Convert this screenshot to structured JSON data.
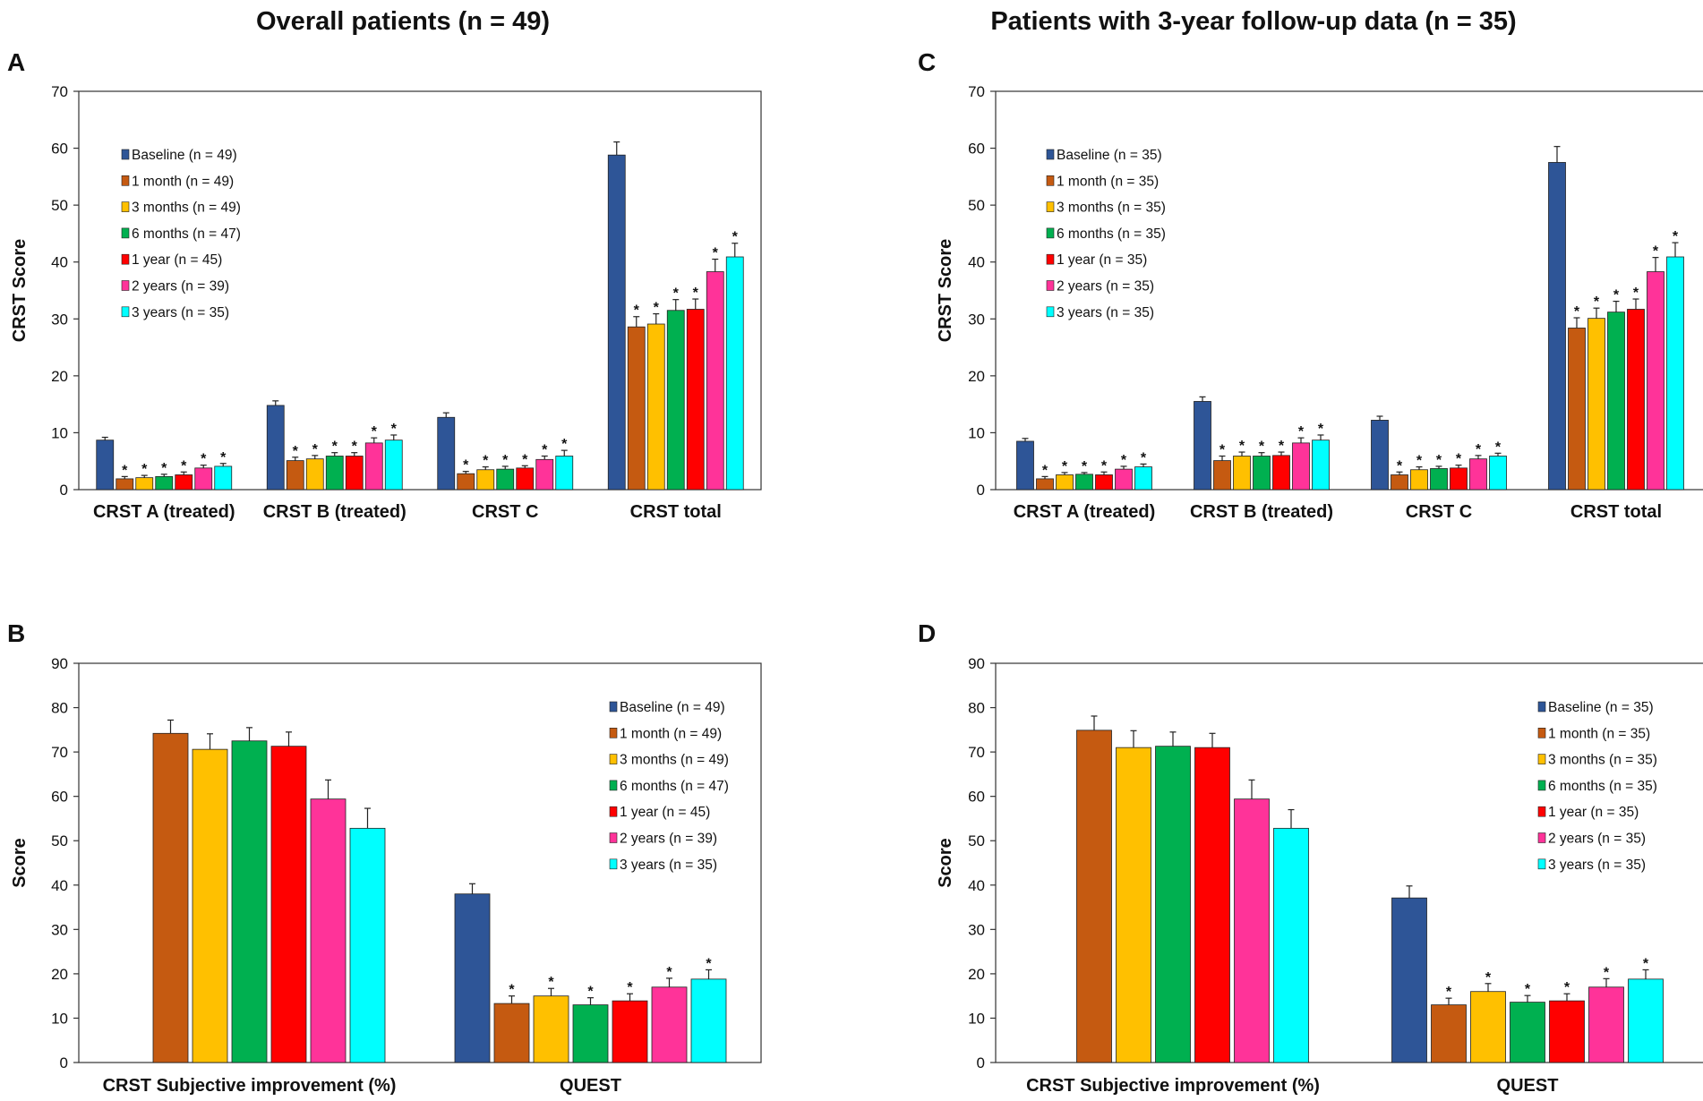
{
  "column_titles": {
    "left": "Overall patients (n = 49)",
    "right": "Patients with 3-year follow-up data (n = 35)"
  },
  "colors": {
    "Baseline": "#2e5597",
    "1 month": "#c55a11",
    "3 months": "#ffc000",
    "6 months": "#00b050",
    "1 year": "#ff0000",
    "2 years": "#ff3399",
    "3 years": "#00ffff"
  },
  "chart_data": [
    {
      "panel": "A",
      "type": "bar",
      "ylabel": "CRST Score",
      "ylim": [
        0,
        70
      ],
      "yticks": [
        0,
        10,
        20,
        30,
        40,
        50,
        60,
        70
      ],
      "legend_position": "top-left",
      "categories": [
        "CRST A (treated)",
        "CRST B (treated)",
        "CRST C",
        "CRST total"
      ],
      "series": [
        {
          "name": "Baseline",
          "legend": "Baseline (n = 49)",
          "values": [
            8.7,
            14.8,
            12.7,
            58.8
          ],
          "errors": [
            0.5,
            0.8,
            0.8,
            2.3
          ],
          "sig": [
            false,
            false,
            false,
            false
          ]
        },
        {
          "name": "1 month",
          "legend": "1 month (n = 49)",
          "values": [
            1.9,
            5.1,
            2.8,
            28.6
          ],
          "errors": [
            0.4,
            0.6,
            0.4,
            1.8
          ],
          "sig": [
            true,
            true,
            true,
            true
          ]
        },
        {
          "name": "3 months",
          "legend": "3 months (n = 49)",
          "values": [
            2.1,
            5.4,
            3.5,
            29.1
          ],
          "errors": [
            0.4,
            0.6,
            0.5,
            1.8
          ],
          "sig": [
            true,
            true,
            true,
            true
          ]
        },
        {
          "name": "6 months",
          "legend": "6 months (n = 47)",
          "values": [
            2.3,
            5.9,
            3.6,
            31.5
          ],
          "errors": [
            0.4,
            0.6,
            0.5,
            1.9
          ],
          "sig": [
            true,
            true,
            true,
            true
          ]
        },
        {
          "name": "1 year",
          "legend": "1 year (n = 45)",
          "values": [
            2.6,
            5.9,
            3.8,
            31.7
          ],
          "errors": [
            0.5,
            0.6,
            0.4,
            1.8
          ],
          "sig": [
            true,
            true,
            true,
            true
          ]
        },
        {
          "name": "2 years",
          "legend": "2 years (n = 39)",
          "values": [
            3.8,
            8.2,
            5.3,
            38.3
          ],
          "errors": [
            0.5,
            0.9,
            0.6,
            2.2
          ],
          "sig": [
            true,
            true,
            true,
            true
          ]
        },
        {
          "name": "3 years",
          "legend": "3 years (n = 35)",
          "values": [
            4.1,
            8.7,
            5.9,
            40.9
          ],
          "errors": [
            0.5,
            0.9,
            1.0,
            2.4
          ],
          "sig": [
            true,
            true,
            true,
            true
          ]
        }
      ]
    },
    {
      "panel": "B",
      "type": "bar",
      "ylabel": "Score",
      "ylim": [
        0,
        90
      ],
      "yticks": [
        0,
        10,
        20,
        30,
        40,
        50,
        60,
        70,
        80,
        90
      ],
      "legend_position": "right",
      "categories": [
        "CRST Subjective improvement (%)",
        "QUEST"
      ],
      "series": [
        {
          "name": "Baseline",
          "legend": "Baseline (n = 49)",
          "values": [
            null,
            38.0
          ],
          "errors": [
            0,
            2.3
          ],
          "sig": [
            false,
            false
          ]
        },
        {
          "name": "1 month",
          "legend": "1 month (n = 49)",
          "values": [
            74.2,
            13.3
          ],
          "errors": [
            3.0,
            1.7
          ],
          "sig": [
            false,
            true
          ]
        },
        {
          "name": "3 months",
          "legend": "3 months (n = 49)",
          "values": [
            70.6,
            15.0
          ],
          "errors": [
            3.5,
            1.7
          ],
          "sig": [
            false,
            true
          ]
        },
        {
          "name": "6 months",
          "legend": "6 months (n = 47)",
          "values": [
            72.5,
            13.0
          ],
          "errors": [
            3.0,
            1.6
          ],
          "sig": [
            false,
            true
          ]
        },
        {
          "name": "1 year",
          "legend": "1 year (n = 45)",
          "values": [
            71.3,
            13.9
          ],
          "errors": [
            3.2,
            1.6
          ],
          "sig": [
            false,
            true
          ]
        },
        {
          "name": "2 years",
          "legend": "2 years (n = 39)",
          "values": [
            59.4,
            17.0
          ],
          "errors": [
            4.3,
            2.0
          ],
          "sig": [
            false,
            true
          ]
        },
        {
          "name": "3 years",
          "legend": "3 years (n = 35)",
          "values": [
            52.8,
            18.8
          ],
          "errors": [
            4.5,
            2.1
          ],
          "sig": [
            false,
            true
          ]
        }
      ]
    },
    {
      "panel": "C",
      "type": "bar",
      "ylabel": "CRST Score",
      "ylim": [
        0,
        70
      ],
      "yticks": [
        0,
        10,
        20,
        30,
        40,
        50,
        60,
        70
      ],
      "legend_position": "top-left",
      "categories": [
        "CRST A (treated)",
        "CRST B (treated)",
        "CRST C",
        "CRST total"
      ],
      "series": [
        {
          "name": "Baseline",
          "legend": "Baseline (n = 35)",
          "values": [
            8.5,
            15.5,
            12.2,
            57.5
          ],
          "errors": [
            0.5,
            0.8,
            0.7,
            2.8
          ],
          "sig": [
            false,
            false,
            false,
            false
          ]
        },
        {
          "name": "1 month",
          "legend": "1 month (n = 35)",
          "values": [
            1.9,
            5.1,
            2.6,
            28.4
          ],
          "errors": [
            0.4,
            0.8,
            0.5,
            1.8
          ],
          "sig": [
            true,
            true,
            true,
            true
          ]
        },
        {
          "name": "3 months",
          "legend": "3 months (n = 35)",
          "values": [
            2.6,
            5.9,
            3.5,
            30.1
          ],
          "errors": [
            0.4,
            0.7,
            0.5,
            1.8
          ],
          "sig": [
            true,
            true,
            true,
            true
          ]
        },
        {
          "name": "6 months",
          "legend": "6 months (n = 35)",
          "values": [
            2.7,
            5.9,
            3.7,
            31.2
          ],
          "errors": [
            0.3,
            0.6,
            0.4,
            1.9
          ],
          "sig": [
            true,
            true,
            true,
            true
          ]
        },
        {
          "name": "1 year",
          "legend": "1 year (n = 35)",
          "values": [
            2.6,
            6.0,
            3.8,
            31.7
          ],
          "errors": [
            0.5,
            0.6,
            0.5,
            1.8
          ],
          "sig": [
            true,
            true,
            true,
            true
          ]
        },
        {
          "name": "2 years",
          "legend": "2 years (n = 35)",
          "values": [
            3.6,
            8.2,
            5.4,
            38.3
          ],
          "errors": [
            0.5,
            0.9,
            0.6,
            2.5
          ],
          "sig": [
            true,
            true,
            true,
            true
          ]
        },
        {
          "name": "3 years",
          "legend": "3 years (n = 35)",
          "values": [
            4.0,
            8.7,
            5.9,
            40.9
          ],
          "errors": [
            0.5,
            0.9,
            0.5,
            2.5
          ],
          "sig": [
            true,
            true,
            true,
            true
          ]
        }
      ]
    },
    {
      "panel": "D",
      "type": "bar",
      "ylabel": "Score",
      "ylim": [
        0,
        90
      ],
      "yticks": [
        0,
        10,
        20,
        30,
        40,
        50,
        60,
        70,
        80,
        90
      ],
      "legend_position": "right",
      "categories": [
        "CRST Subjective improvement (%)",
        "QUEST"
      ],
      "series": [
        {
          "name": "Baseline",
          "legend": "Baseline (n = 35)",
          "values": [
            null,
            37.1
          ],
          "errors": [
            0,
            2.7
          ],
          "sig": [
            false,
            false
          ]
        },
        {
          "name": "1 month",
          "legend": "1 month (n = 35)",
          "values": [
            74.9,
            13.0
          ],
          "errors": [
            3.2,
            1.5
          ],
          "sig": [
            false,
            true
          ]
        },
        {
          "name": "3 months",
          "legend": "3 months (n = 35)",
          "values": [
            71.0,
            16.0
          ],
          "errors": [
            3.8,
            1.8
          ],
          "sig": [
            false,
            true
          ]
        },
        {
          "name": "6 months",
          "legend": "6 months (n = 35)",
          "values": [
            71.3,
            13.6
          ],
          "errors": [
            3.2,
            1.5
          ],
          "sig": [
            false,
            true
          ]
        },
        {
          "name": "1 year",
          "legend": "1 year (n = 35)",
          "values": [
            71.0,
            13.9
          ],
          "errors": [
            3.2,
            1.6
          ],
          "sig": [
            false,
            true
          ]
        },
        {
          "name": "2 years",
          "legend": "2 years (n = 35)",
          "values": [
            59.4,
            17.0
          ],
          "errors": [
            4.3,
            1.9
          ],
          "sig": [
            false,
            true
          ]
        },
        {
          "name": "3 years",
          "legend": "3 years (n = 35)",
          "values": [
            52.8,
            18.8
          ],
          "errors": [
            4.2,
            2.1
          ],
          "sig": [
            false,
            true
          ]
        }
      ]
    }
  ]
}
